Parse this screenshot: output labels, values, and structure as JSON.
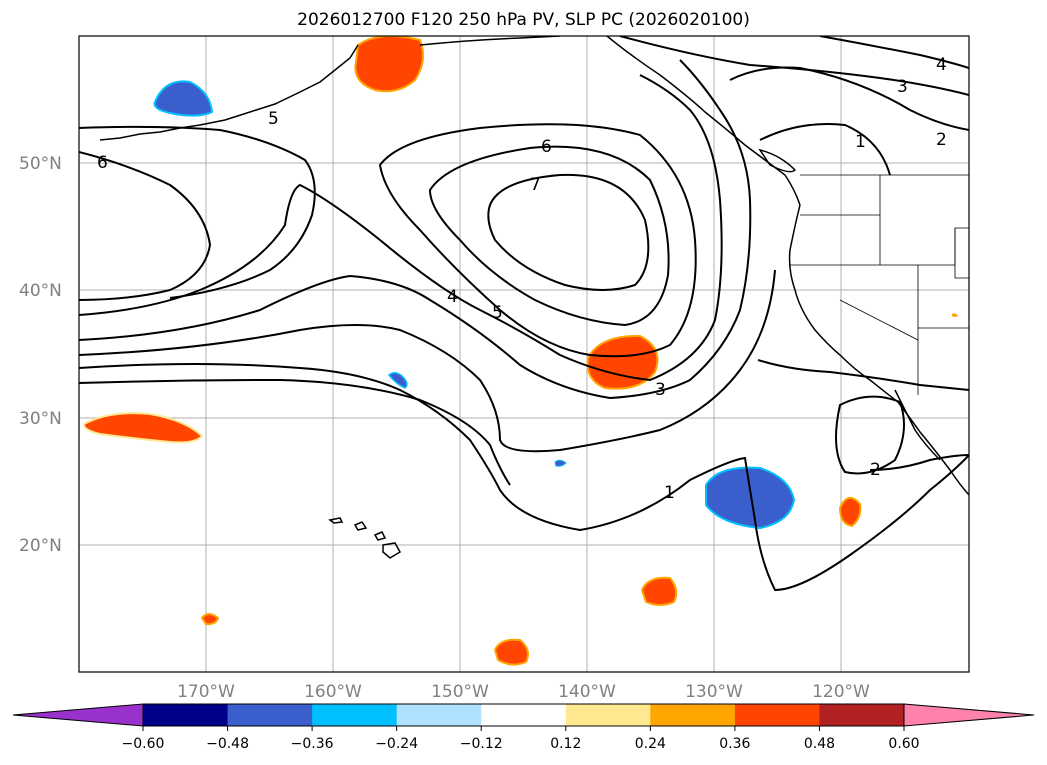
{
  "title": "2026012700 F120 250 hPa PV, SLP PC (2026020100)",
  "latitude_labels": [
    "50°N",
    "40°N",
    "30°N",
    "20°N"
  ],
  "longitude_labels": [
    "170°W",
    "160°W",
    "150°W",
    "140°W",
    "130°W",
    "120°W"
  ],
  "contour_labels": [
    "6",
    "5",
    "6",
    "7",
    "4",
    "5",
    "3",
    "1",
    "1",
    "2",
    "3",
    "4",
    "2"
  ],
  "colorbar": {
    "ticks": [
      "−0.60",
      "−0.48",
      "−0.36",
      "−0.24",
      "−0.12",
      "0.12",
      "0.24",
      "0.36",
      "0.48",
      "0.60"
    ],
    "colors": {
      "under": "#9932cc",
      "bins": [
        "#00008b",
        "#3a5fcd",
        "#00bfff",
        "#b0e2ff",
        "#ffffff",
        "#ffe88f",
        "#ffa500",
        "#ff4500",
        "#b22222"
      ],
      "over": "#ff82ab"
    }
  }
}
